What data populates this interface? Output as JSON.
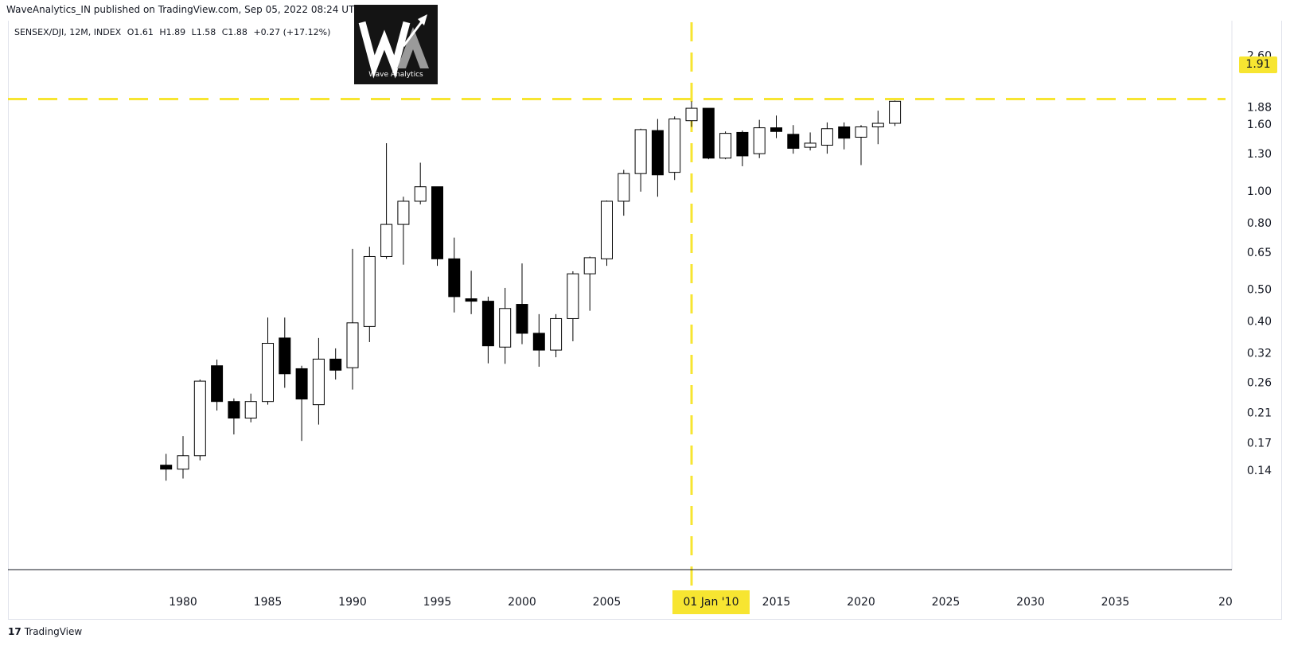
{
  "header": {
    "publisher_line": "WaveAnalytics_IN published on TradingView.com, Sep 05, 2022 08:24 UTC+5:30"
  },
  "legend": {
    "symbol": "SENSEX/DJI, 12M, INDEX",
    "open": "O1.61",
    "high": "H1.89",
    "low": "L1.58",
    "close": "C1.88",
    "change": "+0.27 (+17.12%)"
  },
  "logo": {
    "caption": "Wave Analytics"
  },
  "price_badge": "1.91",
  "date_badge": "01 Jan '10",
  "footer": {
    "brand": "TradingView"
  },
  "colors": {
    "bull_fill": "#ffffff",
    "bear_fill": "#000000",
    "candle_stroke": "#000000",
    "highlight": "#f7e531",
    "axis_line": "#131722"
  },
  "chart_data": {
    "type": "candlestick",
    "title": "",
    "xlabel": "",
    "ylabel": "",
    "y_scale": "log",
    "ylim": [
      0.115,
      2.6
    ],
    "xlim": [
      1975,
      2040.5
    ],
    "y_ticks": [
      "0.14",
      "0.17",
      "0.21",
      "0.26",
      "0.32",
      "0.40",
      "0.50",
      "0.65",
      "0.80",
      "1.00",
      "1.30",
      "1.60",
      "1.88",
      "2.60"
    ],
    "x_ticks": [
      "1980",
      "1985",
      "1990",
      "1995",
      "2000",
      "2005",
      "2015",
      "2020",
      "2025",
      "2030",
      "2035",
      "20"
    ],
    "horizontal_line": 1.91,
    "vertical_line_year": 2010,
    "candles": [
      {
        "year": 1979,
        "o": 0.145,
        "h": 0.157,
        "l": 0.13,
        "c": 0.141
      },
      {
        "year": 1980,
        "o": 0.141,
        "h": 0.178,
        "l": 0.132,
        "c": 0.155
      },
      {
        "year": 1981,
        "o": 0.155,
        "h": 0.265,
        "l": 0.15,
        "c": 0.262
      },
      {
        "year": 1982,
        "o": 0.292,
        "h": 0.305,
        "l": 0.213,
        "c": 0.227
      },
      {
        "year": 1983,
        "o": 0.227,
        "h": 0.232,
        "l": 0.18,
        "c": 0.202
      },
      {
        "year": 1984,
        "o": 0.202,
        "h": 0.24,
        "l": 0.196,
        "c": 0.227
      },
      {
        "year": 1985,
        "o": 0.227,
        "h": 0.41,
        "l": 0.222,
        "c": 0.342
      },
      {
        "year": 1986,
        "o": 0.355,
        "h": 0.41,
        "l": 0.25,
        "c": 0.276
      },
      {
        "year": 1987,
        "o": 0.286,
        "h": 0.292,
        "l": 0.172,
        "c": 0.231
      },
      {
        "year": 1988,
        "o": 0.222,
        "h": 0.355,
        "l": 0.193,
        "c": 0.306
      },
      {
        "year": 1989,
        "o": 0.306,
        "h": 0.33,
        "l": 0.265,
        "c": 0.283
      },
      {
        "year": 1990,
        "o": 0.288,
        "h": 0.665,
        "l": 0.247,
        "c": 0.395
      },
      {
        "year": 1991,
        "o": 0.385,
        "h": 0.675,
        "l": 0.345,
        "c": 0.63
      },
      {
        "year": 1992,
        "o": 0.63,
        "h": 1.4,
        "l": 0.62,
        "c": 0.79
      },
      {
        "year": 1993,
        "o": 0.79,
        "h": 0.96,
        "l": 0.595,
        "c": 0.93
      },
      {
        "year": 1994,
        "o": 0.93,
        "h": 1.22,
        "l": 0.91,
        "c": 1.03
      },
      {
        "year": 1995,
        "o": 1.03,
        "h": 1.03,
        "l": 0.59,
        "c": 0.62
      },
      {
        "year": 1996,
        "o": 0.62,
        "h": 0.72,
        "l": 0.425,
        "c": 0.475
      },
      {
        "year": 1997,
        "o": 0.468,
        "h": 0.57,
        "l": 0.42,
        "c": 0.46
      },
      {
        "year": 1998,
        "o": 0.46,
        "h": 0.475,
        "l": 0.297,
        "c": 0.336
      },
      {
        "year": 1999,
        "o": 0.333,
        "h": 0.505,
        "l": 0.296,
        "c": 0.437
      },
      {
        "year": 2000,
        "o": 0.45,
        "h": 0.6,
        "l": 0.34,
        "c": 0.367
      },
      {
        "year": 2001,
        "o": 0.367,
        "h": 0.42,
        "l": 0.29,
        "c": 0.326
      },
      {
        "year": 2002,
        "o": 0.326,
        "h": 0.42,
        "l": 0.31,
        "c": 0.407
      },
      {
        "year": 2003,
        "o": 0.407,
        "h": 0.568,
        "l": 0.347,
        "c": 0.558
      },
      {
        "year": 2004,
        "o": 0.558,
        "h": 0.63,
        "l": 0.43,
        "c": 0.625
      },
      {
        "year": 2005,
        "o": 0.62,
        "h": 0.935,
        "l": 0.59,
        "c": 0.93
      },
      {
        "year": 2006,
        "o": 0.93,
        "h": 1.16,
        "l": 0.84,
        "c": 1.13
      },
      {
        "year": 2007,
        "o": 1.13,
        "h": 1.55,
        "l": 0.995,
        "c": 1.54
      },
      {
        "year": 2008,
        "o": 1.53,
        "h": 1.66,
        "l": 0.96,
        "c": 1.12
      },
      {
        "year": 2009,
        "o": 1.14,
        "h": 1.69,
        "l": 1.08,
        "c": 1.66
      },
      {
        "year": 2010,
        "o": 1.64,
        "h": 1.88,
        "l": 1.57,
        "c": 1.79
      },
      {
        "year": 2011,
        "o": 1.79,
        "h": 1.79,
        "l": 1.25,
        "c": 1.26
      },
      {
        "year": 2012,
        "o": 1.26,
        "h": 1.52,
        "l": 1.25,
        "c": 1.5
      },
      {
        "year": 2013,
        "o": 1.51,
        "h": 1.53,
        "l": 1.19,
        "c": 1.28
      },
      {
        "year": 2014,
        "o": 1.3,
        "h": 1.65,
        "l": 1.26,
        "c": 1.56
      },
      {
        "year": 2015,
        "o": 1.56,
        "h": 1.7,
        "l": 1.45,
        "c": 1.52
      },
      {
        "year": 2016,
        "o": 1.49,
        "h": 1.59,
        "l": 1.3,
        "c": 1.35
      },
      {
        "year": 2017,
        "o": 1.36,
        "h": 1.51,
        "l": 1.33,
        "c": 1.4
      },
      {
        "year": 2018,
        "o": 1.38,
        "h": 1.62,
        "l": 1.3,
        "c": 1.55
      },
      {
        "year": 2019,
        "o": 1.57,
        "h": 1.62,
        "l": 1.34,
        "c": 1.45
      },
      {
        "year": 2020,
        "o": 1.46,
        "h": 1.59,
        "l": 1.2,
        "c": 1.57
      },
      {
        "year": 2021,
        "o": 1.57,
        "h": 1.76,
        "l": 1.39,
        "c": 1.61
      },
      {
        "year": 2022,
        "o": 1.61,
        "h": 1.89,
        "l": 1.58,
        "c": 1.88
      }
    ]
  }
}
